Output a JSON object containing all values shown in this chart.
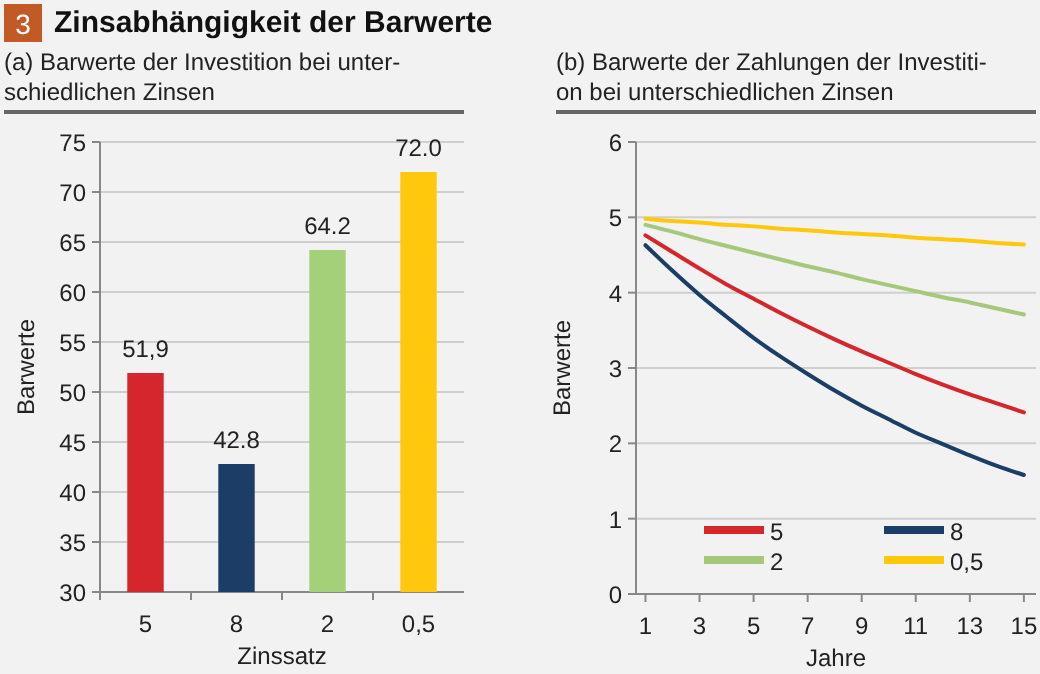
{
  "chart_data": [
    {
      "type": "bar",
      "title": "Zinsabhängigkeit der Barwerte",
      "annotations": [
        "3"
      ],
      "subtitle": "(a) Barwerte der Investition bei unter-\nschiedlichen Zinsen",
      "xlabel": "Zinssatz",
      "ylabel": "Barwerte",
      "categories": [
        "5",
        "8",
        "2",
        "0,5"
      ],
      "values": [
        51.9,
        42.8,
        64.2,
        72.0
      ],
      "colors": [
        "#d5262e",
        "#1b3d66",
        "#a5d07a",
        "#ffc80c"
      ],
      "value_labels": [
        "51,9",
        "42.8",
        "64.2",
        "72.0"
      ],
      "ylim": [
        30,
        75
      ],
      "yticks": [
        30,
        35,
        40,
        45,
        50,
        55,
        60,
        65,
        70,
        75
      ],
      "grid": "y"
    },
    {
      "type": "line",
      "subtitle": "(b) Barwerte der Zahlungen der Investiti-\non bei unterschiedlichen Zinsen",
      "xlabel": "Jahre",
      "ylabel": "Barwerte",
      "x": [
        1,
        2,
        3,
        4,
        5,
        6,
        7,
        8,
        9,
        10,
        11,
        12,
        13,
        14,
        15
      ],
      "xlim": [
        0.65,
        15.3
      ],
      "xticks": [
        1,
        3,
        5,
        7,
        9,
        11,
        13,
        15
      ],
      "ylim": [
        0,
        6
      ],
      "yticks": [
        0,
        1,
        2,
        3,
        4,
        5,
        6
      ],
      "grid": "y",
      "legend": "bottom",
      "series": [
        {
          "name": "5",
          "color": "#d5262e",
          "values": [
            4.76,
            4.54,
            4.32,
            4.11,
            3.92,
            3.73,
            3.55,
            3.38,
            3.22,
            3.07,
            2.92,
            2.78,
            2.65,
            2.53,
            2.41
          ]
        },
        {
          "name": "8",
          "color": "#1b3d66",
          "values": [
            4.63,
            4.29,
            3.97,
            3.68,
            3.4,
            3.15,
            2.92,
            2.7,
            2.5,
            2.32,
            2.14,
            1.99,
            1.84,
            1.7,
            1.58
          ]
        },
        {
          "name": "2",
          "color": "#a5c87a",
          "values": [
            4.9,
            4.81,
            4.71,
            4.62,
            4.53,
            4.44,
            4.35,
            4.27,
            4.18,
            4.1,
            4.02,
            3.94,
            3.87,
            3.79,
            3.71
          ]
        },
        {
          "name": "0,5",
          "color": "#ffc80c",
          "values": [
            4.98,
            4.95,
            4.93,
            4.9,
            4.88,
            4.85,
            4.83,
            4.8,
            4.78,
            4.76,
            4.73,
            4.71,
            4.69,
            4.66,
            4.64
          ]
        }
      ]
    }
  ]
}
